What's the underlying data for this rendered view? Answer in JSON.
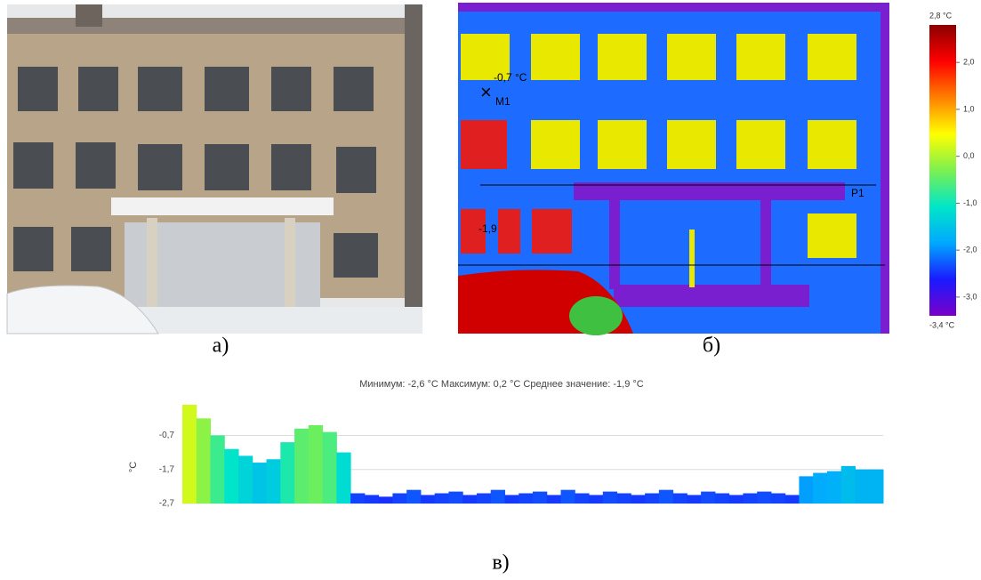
{
  "labels": {
    "a": "а)",
    "b": "б)",
    "c": "в)"
  },
  "thermal": {
    "annotations": {
      "m1_value": "-0,7 °C",
      "m1": "M1",
      "spot": "-1,9",
      "p1": "P1"
    },
    "colorbar": {
      "lim": [
        -3.4,
        2.8
      ],
      "colors": [
        "#7a00c8",
        "#1a1aff",
        "#00a8ff",
        "#00e6c8",
        "#7cf050",
        "#ffff00",
        "#ff8000",
        "#ff0000",
        "#8b0000"
      ],
      "ticks": [
        {
          "value": 2.8,
          "label": "2,8 °C"
        },
        {
          "value": 2.0,
          "label": "2,0"
        },
        {
          "value": 1.0,
          "label": "1,0"
        },
        {
          "value": 0.0,
          "label": "0,0"
        },
        {
          "value": -1.0,
          "label": "-1,0"
        },
        {
          "value": -2.0,
          "label": "-2,0"
        },
        {
          "value": -3.0,
          "label": "-3,0"
        },
        {
          "value": -3.4,
          "label": "-3,4 °C"
        }
      ]
    }
  },
  "chart_data": {
    "type": "profile",
    "title": "Минимум: -2,6 °C Максимум: 0,2 °C Среднее значение: -1,9 °C",
    "y_label": "°C",
    "ylim": [
      -2.7,
      0.2
    ],
    "yticks": [
      {
        "value": -0.7,
        "label": "-0,7"
      },
      {
        "value": -1.7,
        "label": "-1,7"
      },
      {
        "value": -2.7,
        "label": "-2,7"
      }
    ],
    "grid": true,
    "values": [
      0.2,
      -0.2,
      -0.7,
      -1.1,
      -1.3,
      -1.5,
      -1.4,
      -0.9,
      -0.5,
      -0.4,
      -0.6,
      -1.2,
      -2.4,
      -2.45,
      -2.5,
      -2.4,
      -2.3,
      -2.45,
      -2.4,
      -2.35,
      -2.45,
      -2.4,
      -2.3,
      -2.45,
      -2.4,
      -2.35,
      -2.45,
      -2.3,
      -2.4,
      -2.45,
      -2.35,
      -2.4,
      -2.45,
      -2.4,
      -2.3,
      -2.4,
      -2.45,
      -2.35,
      -2.4,
      -2.45,
      -2.4,
      -2.35,
      -2.4,
      -2.45,
      -1.9,
      -1.8,
      -1.75,
      -1.6,
      -1.7,
      -1.7
    ]
  }
}
